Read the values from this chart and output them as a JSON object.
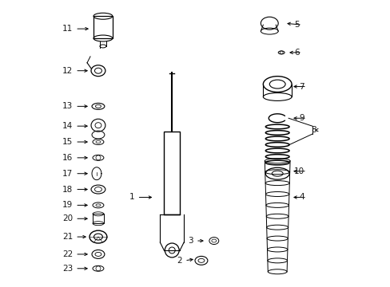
{
  "background_color": "#ffffff",
  "line_color": "#000000",
  "figsize": [
    4.89,
    3.6
  ],
  "dpi": 100,
  "parts_labels": [
    [
      "1",
      168,
      248,
      193,
      248
    ],
    [
      "2",
      228,
      328,
      245,
      326
    ],
    [
      "3",
      242,
      303,
      258,
      303
    ],
    [
      "4",
      382,
      248,
      365,
      248
    ],
    [
      "5",
      376,
      30,
      357,
      28
    ],
    [
      "6",
      376,
      65,
      360,
      65
    ],
    [
      "7",
      382,
      108,
      365,
      108
    ],
    [
      "8",
      397,
      163,
      392,
      163
    ],
    [
      "9",
      382,
      148,
      365,
      148
    ],
    [
      "10",
      382,
      215,
      365,
      215
    ],
    [
      "11",
      90,
      35,
      113,
      35
    ],
    [
      "12",
      90,
      88,
      112,
      88
    ],
    [
      "13",
      90,
      133,
      112,
      133
    ],
    [
      "14",
      90,
      158,
      112,
      158
    ],
    [
      "15",
      90,
      178,
      112,
      178
    ],
    [
      "16",
      90,
      198,
      112,
      198
    ],
    [
      "17",
      90,
      218,
      112,
      218
    ],
    [
      "18",
      90,
      238,
      112,
      238
    ],
    [
      "19",
      90,
      258,
      112,
      258
    ],
    [
      "20",
      90,
      275,
      112,
      275
    ],
    [
      "21",
      90,
      298,
      110,
      298
    ],
    [
      "22",
      90,
      320,
      112,
      320
    ],
    [
      "23",
      90,
      338,
      112,
      338
    ]
  ]
}
